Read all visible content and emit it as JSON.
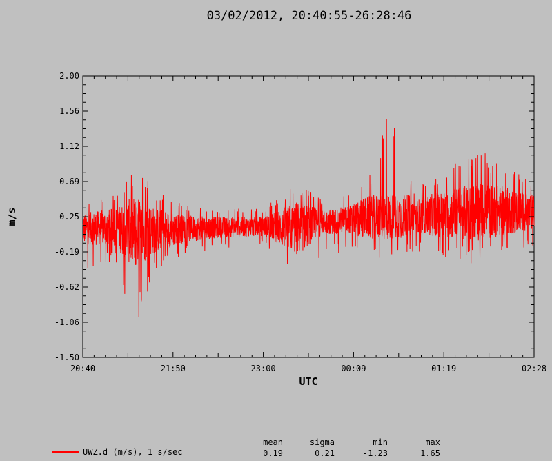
{
  "chart_data": {
    "type": "line",
    "title": "03/02/2012, 20:40:55-26:28:46",
    "xlabel": "UTC",
    "ylabel": "m/s",
    "ylim": [
      -1.5,
      2.0
    ],
    "ytick_labels": [
      "2.00",
      "1.56",
      "1.12",
      "0.69",
      "0.25",
      "-0.19",
      "-0.62",
      "-1.06",
      "-1.50"
    ],
    "xtick_labels": [
      "20:40",
      "21:50",
      "23:00",
      "00:09",
      "01:19",
      "02:28"
    ],
    "grid": false,
    "legend_position": "bottom-left",
    "series": [
      {
        "name": "UWZ.d (m/s), 1 s/sec",
        "color": "#ff0000",
        "x_start": "20:40:55",
        "x_end": "26:28:46",
        "envelope": [
          {
            "t": "20:40",
            "y_mean": 0.1,
            "y_min": -0.45,
            "y_max": 0.45
          },
          {
            "t": "21:05",
            "y_mean": 0.12,
            "y_min": -0.3,
            "y_max": 0.55
          },
          {
            "t": "21:20",
            "y_mean": 0.05,
            "y_min": -1.2,
            "y_max": 0.9
          },
          {
            "t": "21:35",
            "y_mean": 0.08,
            "y_min": -0.45,
            "y_max": 0.6
          },
          {
            "t": "22:00",
            "y_mean": 0.1,
            "y_min": -0.2,
            "y_max": 0.4
          },
          {
            "t": "22:30",
            "y_mean": 0.12,
            "y_min": -0.15,
            "y_max": 0.35
          },
          {
            "t": "23:00",
            "y_mean": 0.13,
            "y_min": -0.1,
            "y_max": 0.35
          },
          {
            "t": "23:25",
            "y_mean": 0.1,
            "y_min": -0.65,
            "y_max": 0.72
          },
          {
            "t": "23:45",
            "y_mean": 0.18,
            "y_min": -0.2,
            "y_max": 0.45
          },
          {
            "t": "00:09",
            "y_mean": 0.22,
            "y_min": -0.2,
            "y_max": 0.55
          },
          {
            "t": "00:25",
            "y_mean": 0.25,
            "y_min": -0.25,
            "y_max": 0.9
          },
          {
            "t": "00:35",
            "y_mean": 0.25,
            "y_min": -0.3,
            "y_max": 1.65
          },
          {
            "t": "00:55",
            "y_mean": 0.26,
            "y_min": -0.2,
            "y_max": 0.6
          },
          {
            "t": "01:19",
            "y_mean": 0.28,
            "y_min": -0.25,
            "y_max": 0.85
          },
          {
            "t": "01:45",
            "y_mean": 0.32,
            "y_min": -0.35,
            "y_max": 1.1
          },
          {
            "t": "02:10",
            "y_mean": 0.32,
            "y_min": -0.2,
            "y_max": 0.85
          },
          {
            "t": "02:28",
            "y_mean": 0.3,
            "y_min": -0.1,
            "y_max": 0.7
          }
        ]
      }
    ],
    "stats": {
      "headers": [
        "mean",
        "sigma",
        "min",
        "max"
      ],
      "values": [
        "0.19",
        "0.21",
        "-1.23",
        "1.65"
      ]
    }
  }
}
